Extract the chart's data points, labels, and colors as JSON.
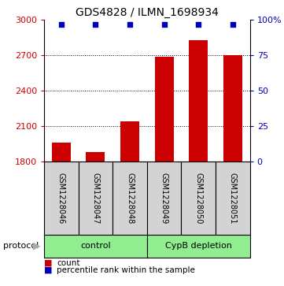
{
  "title": "GDS4828 / ILMN_1698934",
  "samples": [
    "GSM1228046",
    "GSM1228047",
    "GSM1228048",
    "GSM1228049",
    "GSM1228050",
    "GSM1228051"
  ],
  "counts": [
    1960,
    1880,
    2140,
    2690,
    2830,
    2700
  ],
  "percentile_ranks": [
    97,
    97,
    97,
    97,
    97,
    97
  ],
  "ylim_left": [
    1800,
    3000
  ],
  "ylim_right": [
    0,
    100
  ],
  "yticks_left": [
    1800,
    2100,
    2400,
    2700,
    3000
  ],
  "yticks_right": [
    0,
    25,
    50,
    75,
    100
  ],
  "bar_color": "#cc0000",
  "dot_color": "#0000bb",
  "control_label": "control",
  "cypb_label": "CypB depletion",
  "protocol_label": "protocol",
  "legend_count_label": "count",
  "legend_pct_label": "percentile rank within the sample",
  "sample_box_color": "#d3d3d3",
  "group_color": "#90ee90",
  "background_color": "#ffffff",
  "title_fontsize": 10,
  "tick_fontsize": 8,
  "sample_label_fontsize": 7,
  "group_label_fontsize": 8,
  "legend_fontsize": 7.5
}
